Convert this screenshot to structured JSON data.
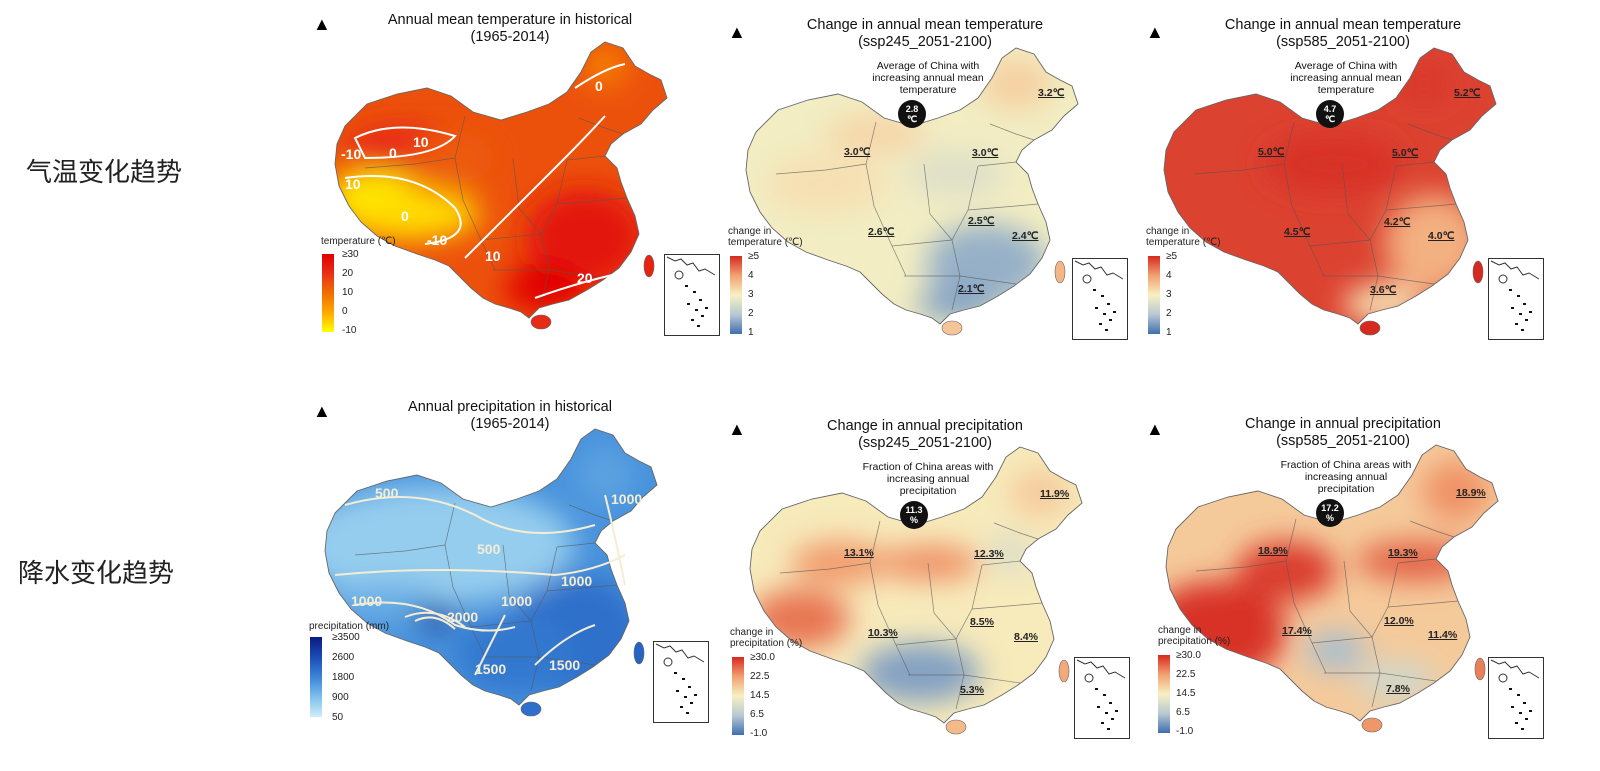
{
  "rows": [
    {
      "label": "气温变化趋势"
    },
    {
      "label": "降水变化趋势"
    }
  ],
  "north_symbol": "▲",
  "colors": {
    "temp_hist": [
      "#ffff00",
      "#ffa800",
      "#f07000",
      "#e83018",
      "#e00000"
    ],
    "temp_change": [
      "#3f6fb0",
      "#b8c9d2",
      "#f7f0c2",
      "#f2a070",
      "#d62a20"
    ],
    "precip_hist": [
      "#cfeefa",
      "#7fc0ea",
      "#3a86d8",
      "#1a4cb4",
      "#0a1a80"
    ],
    "precip_change": [
      "#3f6fb0",
      "#b8c9d2",
      "#f7f0c2",
      "#f2a070",
      "#d62a20"
    ]
  },
  "panels": [
    {
      "id": "temp-hist",
      "title": [
        "Annual mean temperature in historical",
        "(1965-2014)"
      ],
      "legend_title": [
        "temperature (℃)"
      ],
      "ticks": [
        "≥30",
        "20",
        "10",
        "0",
        "-10"
      ],
      "contours": [
        "-10",
        "0",
        "10",
        "10",
        "0",
        "-10",
        "10",
        "20",
        "0"
      ],
      "base_level": 0.62
    },
    {
      "id": "temp-245",
      "title": [
        "Change in annual mean temperature",
        "(ssp245_2051-2100)"
      ],
      "callout": [
        "Average of China with",
        "increasing annual mean",
        "temperature"
      ],
      "bubble": [
        "2.8",
        "℃"
      ],
      "regions": [
        "3.2℃",
        "3.0℃",
        "3.0℃",
        "2.5℃",
        "2.6℃",
        "2.4℃",
        "2.1℃"
      ],
      "legend_title": [
        "change in",
        "temperature (℃)"
      ],
      "ticks": [
        "≥5",
        "4",
        "3",
        "2",
        "1"
      ],
      "base_level": 0.48
    },
    {
      "id": "temp-585",
      "title": [
        "Change in annual mean temperature",
        "(ssp585_2051-2100)"
      ],
      "callout": [
        "Average of China with",
        "increasing annual mean",
        "temperature"
      ],
      "bubble": [
        "4.7",
        "℃"
      ],
      "regions": [
        "5.2℃",
        "5.0℃",
        "5.0℃",
        "4.2℃",
        "4.5℃",
        "4.0℃",
        "3.6℃"
      ],
      "legend_title": [
        "change in",
        "temperature (℃)"
      ],
      "ticks": [
        "≥5",
        "4",
        "3",
        "2",
        "1"
      ],
      "base_level": 0.95
    },
    {
      "id": "precip-hist",
      "title": [
        "Annual precipitation in historical",
        "(1965-2014)"
      ],
      "legend_title": [
        "precipitation (mm)"
      ],
      "ticks": [
        "≥3500",
        "2600",
        "1800",
        "900",
        "50"
      ],
      "contours": [
        "500",
        "500",
        "1000",
        "1000",
        "1000",
        "2000",
        "1500",
        "1500",
        "1000"
      ],
      "base_level": 0.45
    },
    {
      "id": "precip-245",
      "title": [
        "Change in annual precipitation",
        "(ssp245_2051-2100)"
      ],
      "callout": [
        "Fraction of China areas with",
        "increasing annual",
        "precipitation"
      ],
      "bubble": [
        "11.3",
        "%"
      ],
      "regions": [
        "11.9%",
        "13.1%",
        "12.3%",
        "10.3%",
        "8.5%",
        "8.4%",
        "5.3%"
      ],
      "legend_title": [
        "change in",
        "precipitation (%)"
      ],
      "ticks": [
        "≥30.0",
        "22.5",
        "14.5",
        "6.5",
        "-1.0"
      ],
      "base_level": 0.52
    },
    {
      "id": "precip-585",
      "title": [
        "Change in annual precipitation",
        "(ssp585_2051-2100)"
      ],
      "callout": [
        "Fraction of China areas with",
        "increasing annual",
        "precipitation"
      ],
      "bubble": [
        "17.2",
        "%"
      ],
      "regions": [
        "18.9%",
        "18.9%",
        "19.3%",
        "12.0%",
        "17.4%",
        "11.4%",
        "7.8%"
      ],
      "legend_title": [
        "change in",
        "precipitation (%)"
      ],
      "ticks": [
        "≥30.0",
        "22.5",
        "14.5",
        "6.5",
        "-1.0"
      ],
      "base_level": 0.62
    }
  ]
}
